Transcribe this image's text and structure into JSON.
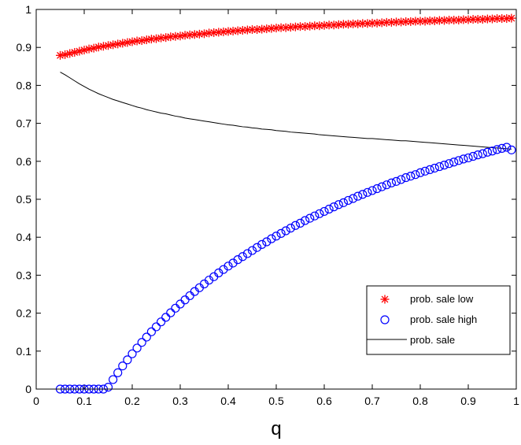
{
  "chart_data": {
    "type": "scatter",
    "title": "",
    "xlabel": "q",
    "ylabel": "",
    "xlim": [
      0,
      1
    ],
    "ylim": [
      0,
      1
    ],
    "grid": false,
    "legend_position": "bottom-right",
    "x_ticks": [
      "0",
      "0.1",
      "0.2",
      "0.3",
      "0.4",
      "0.5",
      "0.6",
      "0.7",
      "0.8",
      "0.9",
      "1"
    ],
    "y_ticks": [
      "0",
      "0.1",
      "0.2",
      "0.3",
      "0.4",
      "0.5",
      "0.6",
      "0.7",
      "0.8",
      "0.9",
      "1"
    ],
    "x": [
      0.05,
      0.06,
      0.07,
      0.08,
      0.09,
      0.1,
      0.11,
      0.12,
      0.13,
      0.14,
      0.15,
      0.16,
      0.17,
      0.18,
      0.19,
      0.2,
      0.21,
      0.22,
      0.23,
      0.24,
      0.25,
      0.26,
      0.27,
      0.28,
      0.29,
      0.3,
      0.31,
      0.32,
      0.33,
      0.34,
      0.35,
      0.36,
      0.37,
      0.38,
      0.39,
      0.4,
      0.41,
      0.42,
      0.43,
      0.44,
      0.45,
      0.46,
      0.47,
      0.48,
      0.49,
      0.5,
      0.51,
      0.52,
      0.53,
      0.54,
      0.55,
      0.56,
      0.57,
      0.58,
      0.59,
      0.6,
      0.61,
      0.62,
      0.63,
      0.64,
      0.65,
      0.66,
      0.67,
      0.68,
      0.69,
      0.7,
      0.71,
      0.72,
      0.73,
      0.74,
      0.75,
      0.76,
      0.77,
      0.78,
      0.79,
      0.8,
      0.81,
      0.82,
      0.83,
      0.84,
      0.85,
      0.86,
      0.87,
      0.88,
      0.89,
      0.9,
      0.91,
      0.92,
      0.93,
      0.94,
      0.95,
      0.96,
      0.97,
      0.98,
      0.99
    ],
    "series": [
      {
        "name": "prob. sale low",
        "marker": "asterisk",
        "color": "#ff0000",
        "values": [
          0.879,
          0.881,
          0.884,
          0.887,
          0.89,
          0.893,
          0.896,
          0.898,
          0.901,
          0.903,
          0.905,
          0.907,
          0.909,
          0.911,
          0.913,
          0.915,
          0.917,
          0.918,
          0.92,
          0.922,
          0.923,
          0.925,
          0.926,
          0.928,
          0.929,
          0.93,
          0.932,
          0.933,
          0.934,
          0.935,
          0.936,
          0.938,
          0.939,
          0.94,
          0.941,
          0.942,
          0.943,
          0.944,
          0.945,
          0.946,
          0.947,
          0.947,
          0.948,
          0.949,
          0.95,
          0.951,
          0.952,
          0.952,
          0.953,
          0.954,
          0.955,
          0.955,
          0.956,
          0.957,
          0.957,
          0.958,
          0.959,
          0.959,
          0.96,
          0.961,
          0.961,
          0.962,
          0.962,
          0.963,
          0.963,
          0.964,
          0.964,
          0.965,
          0.966,
          0.966,
          0.967,
          0.967,
          0.968,
          0.968,
          0.969,
          0.969,
          0.969,
          0.97,
          0.97,
          0.971,
          0.971,
          0.972,
          0.972,
          0.972,
          0.973,
          0.973,
          0.974,
          0.974,
          0.974,
          0.975,
          0.975,
          0.976,
          0.976,
          0.976,
          0.977
        ]
      },
      {
        "name": "prob. sale high",
        "marker": "circle",
        "color": "#0000ff",
        "values": [
          0.0,
          0.0,
          0.0,
          0.0,
          0.0,
          0.0,
          0.0,
          0.0,
          0.0,
          0.0,
          0.005,
          0.025,
          0.043,
          0.061,
          0.077,
          0.093,
          0.108,
          0.123,
          0.137,
          0.151,
          0.164,
          0.177,
          0.189,
          0.201,
          0.213,
          0.224,
          0.235,
          0.246,
          0.257,
          0.267,
          0.277,
          0.287,
          0.296,
          0.306,
          0.315,
          0.324,
          0.332,
          0.341,
          0.349,
          0.357,
          0.365,
          0.373,
          0.381,
          0.388,
          0.396,
          0.403,
          0.41,
          0.417,
          0.424,
          0.431,
          0.437,
          0.444,
          0.45,
          0.456,
          0.462,
          0.468,
          0.474,
          0.48,
          0.486,
          0.491,
          0.497,
          0.502,
          0.508,
          0.513,
          0.518,
          0.523,
          0.528,
          0.533,
          0.538,
          0.543,
          0.547,
          0.552,
          0.557,
          0.561,
          0.565,
          0.57,
          0.574,
          0.578,
          0.582,
          0.586,
          0.59,
          0.594,
          0.598,
          0.602,
          0.606,
          0.609,
          0.613,
          0.617,
          0.62,
          0.624,
          0.627,
          0.631,
          0.634,
          0.637,
          0.63
        ]
      },
      {
        "name": "prob. sale",
        "marker": "line",
        "color": "#000000",
        "values": [
          0.835,
          0.828,
          0.82,
          0.812,
          0.804,
          0.797,
          0.79,
          0.784,
          0.778,
          0.773,
          0.768,
          0.763,
          0.759,
          0.755,
          0.751,
          0.747,
          0.743,
          0.74,
          0.736,
          0.733,
          0.73,
          0.727,
          0.725,
          0.722,
          0.719,
          0.717,
          0.714,
          0.712,
          0.71,
          0.708,
          0.706,
          0.704,
          0.702,
          0.7,
          0.698,
          0.696,
          0.695,
          0.693,
          0.691,
          0.69,
          0.688,
          0.687,
          0.685,
          0.684,
          0.683,
          0.681,
          0.68,
          0.679,
          0.677,
          0.676,
          0.675,
          0.674,
          0.673,
          0.672,
          0.67,
          0.669,
          0.668,
          0.667,
          0.666,
          0.665,
          0.664,
          0.663,
          0.662,
          0.661,
          0.66,
          0.66,
          0.659,
          0.658,
          0.657,
          0.656,
          0.655,
          0.654,
          0.654,
          0.653,
          0.652,
          0.651,
          0.65,
          0.649,
          0.648,
          0.647,
          0.646,
          0.645,
          0.644,
          0.643,
          0.642,
          0.641,
          0.64,
          0.639,
          0.638,
          0.637,
          0.636,
          0.635,
          0.634,
          0.633,
          0.632
        ]
      }
    ]
  }
}
